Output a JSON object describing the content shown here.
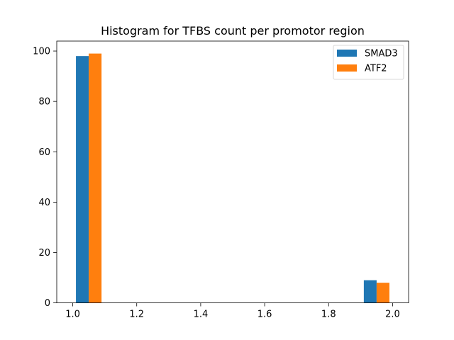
{
  "chart_data": {
    "type": "bar",
    "title": "Histogram for TFBS count per promotor region",
    "xlabel": "",
    "ylabel": "",
    "xlim": [
      0.95,
      2.05
    ],
    "ylim": [
      0,
      103.95
    ],
    "xticks": [
      "1.0",
      "1.2",
      "1.4",
      "1.6",
      "1.8",
      "2.0"
    ],
    "yticks": [
      "0",
      "20",
      "40",
      "60",
      "80",
      "100"
    ],
    "grid": false,
    "legend": "top-right",
    "bin_edges": [
      1.0,
      1.1,
      1.2,
      1.3,
      1.4,
      1.5,
      1.6,
      1.7,
      1.8,
      1.9,
      2.0
    ],
    "series": [
      {
        "name": "SMAD3",
        "color": "#1f77b4",
        "values": [
          98,
          0,
          0,
          0,
          0,
          0,
          0,
          0,
          0,
          9
        ]
      },
      {
        "name": "ATF2",
        "color": "#ff7f0e",
        "values": [
          99,
          0,
          0,
          0,
          0,
          0,
          0,
          0,
          0,
          8
        ]
      }
    ]
  }
}
